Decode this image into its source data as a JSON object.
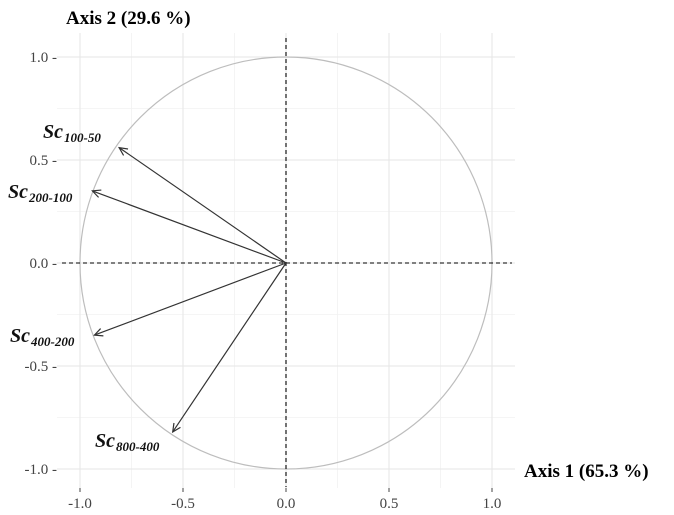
{
  "chart_data": {
    "type": "scatter",
    "subtype": "correlation-circle",
    "xlabel": "Axis 1 (65.3 %)",
    "ylabel": "Axis 2 (29.6 %)",
    "xlim": [
      -1.0,
      1.0
    ],
    "ylim": [
      -1.0,
      1.0
    ],
    "x_ticks": [
      "-1.0",
      "-0.5",
      "0.0",
      "0.5",
      "1.0"
    ],
    "y_ticks": [
      "1.0 -",
      "0.5 -",
      "0.0 -",
      "-0.5 -",
      "-1.0 -"
    ],
    "grid": true,
    "unit_circle": true,
    "reference_lines": "dashed at x=0 and y=0",
    "vectors": [
      {
        "prefix": "Sc",
        "sub": "100-50",
        "x": -0.81,
        "y": 0.56
      },
      {
        "prefix": "Sc",
        "sub": "200-100",
        "x": -0.94,
        "y": 0.35
      },
      {
        "prefix": "Sc",
        "sub": "400-200",
        "x": -0.93,
        "y": -0.35
      },
      {
        "prefix": "Sc",
        "sub": "800-400",
        "x": -0.55,
        "y": -0.82
      }
    ],
    "colors": {
      "vector": "#333333",
      "circle": "#bdbdbd",
      "grid": "#e6e6e6"
    }
  }
}
